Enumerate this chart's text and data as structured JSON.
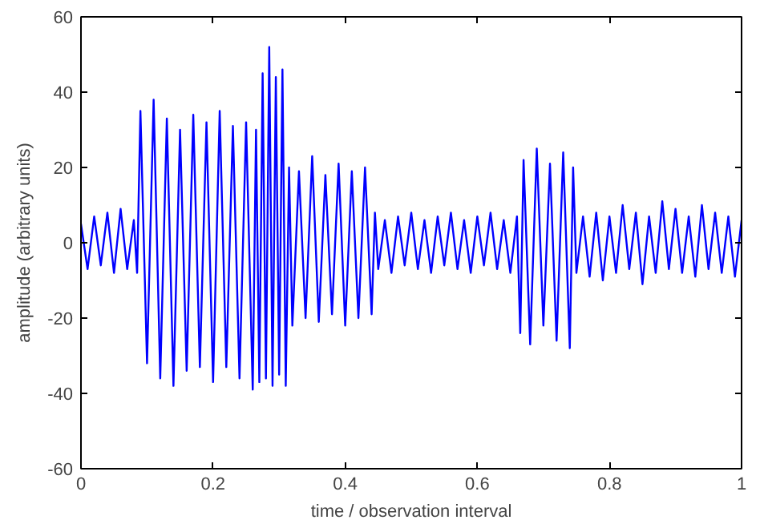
{
  "chart_data": {
    "type": "line",
    "xlabel": "time / observation interval",
    "ylabel": "amplitude (arbitrary units)",
    "xlim": [
      0,
      1
    ],
    "ylim": [
      -60,
      60
    ],
    "xticks": [
      0,
      0.2,
      0.4,
      0.6,
      0.8,
      1
    ],
    "yticks": [
      -60,
      -40,
      -20,
      0,
      20,
      40,
      60
    ],
    "grid": false,
    "series": [
      {
        "color": "#0000ff",
        "x": [
          0,
          0.01,
          0.02,
          0.03,
          0.04,
          0.05,
          0.06,
          0.07,
          0.08,
          0.085,
          0.09,
          0.1,
          0.11,
          0.12,
          0.13,
          0.14,
          0.15,
          0.16,
          0.17,
          0.18,
          0.19,
          0.2,
          0.21,
          0.22,
          0.23,
          0.24,
          0.25,
          0.26,
          0.265,
          0.27,
          0.275,
          0.28,
          0.285,
          0.29,
          0.295,
          0.3,
          0.305,
          0.31,
          0.315,
          0.32,
          0.33,
          0.34,
          0.35,
          0.36,
          0.37,
          0.38,
          0.39,
          0.4,
          0.41,
          0.42,
          0.43,
          0.44,
          0.445,
          0.45,
          0.46,
          0.47,
          0.48,
          0.49,
          0.5,
          0.51,
          0.52,
          0.53,
          0.54,
          0.55,
          0.56,
          0.57,
          0.58,
          0.59,
          0.6,
          0.61,
          0.62,
          0.63,
          0.64,
          0.65,
          0.66,
          0.665,
          0.67,
          0.68,
          0.69,
          0.7,
          0.71,
          0.72,
          0.73,
          0.74,
          0.745,
          0.75,
          0.76,
          0.77,
          0.78,
          0.79,
          0.8,
          0.81,
          0.82,
          0.83,
          0.84,
          0.85,
          0.86,
          0.87,
          0.88,
          0.89,
          0.9,
          0.91,
          0.92,
          0.93,
          0.94,
          0.95,
          0.96,
          0.97,
          0.98,
          0.99,
          1
        ],
        "values": [
          5,
          -7,
          7,
          -6,
          8,
          -8,
          9,
          -7,
          6,
          -8,
          35,
          -32,
          38,
          -36,
          33,
          -38,
          30,
          -34,
          34,
          -33,
          32,
          -37,
          35,
          -33,
          31,
          -36,
          32,
          -39,
          30,
          -37,
          45,
          -36,
          52,
          -38,
          44,
          -35,
          46,
          -38,
          20,
          -22,
          19,
          -20,
          23,
          -21,
          18,
          -19,
          21,
          -22,
          19,
          -20,
          20,
          -19,
          8,
          -7,
          6,
          -8,
          7,
          -6,
          8,
          -7,
          6,
          -8,
          7,
          -6,
          8,
          -7,
          6,
          -8,
          7,
          -6,
          8,
          -7,
          6,
          -8,
          7,
          -24,
          22,
          -27,
          25,
          -22,
          21,
          -26,
          24,
          -28,
          20,
          -8,
          7,
          -9,
          8,
          -10,
          7,
          -8,
          10,
          -7,
          8,
          -11,
          7,
          -8,
          11,
          -7,
          9,
          -8,
          7,
          -9,
          10,
          -7,
          8,
          -8,
          7,
          -9,
          6
        ]
      }
    ]
  }
}
